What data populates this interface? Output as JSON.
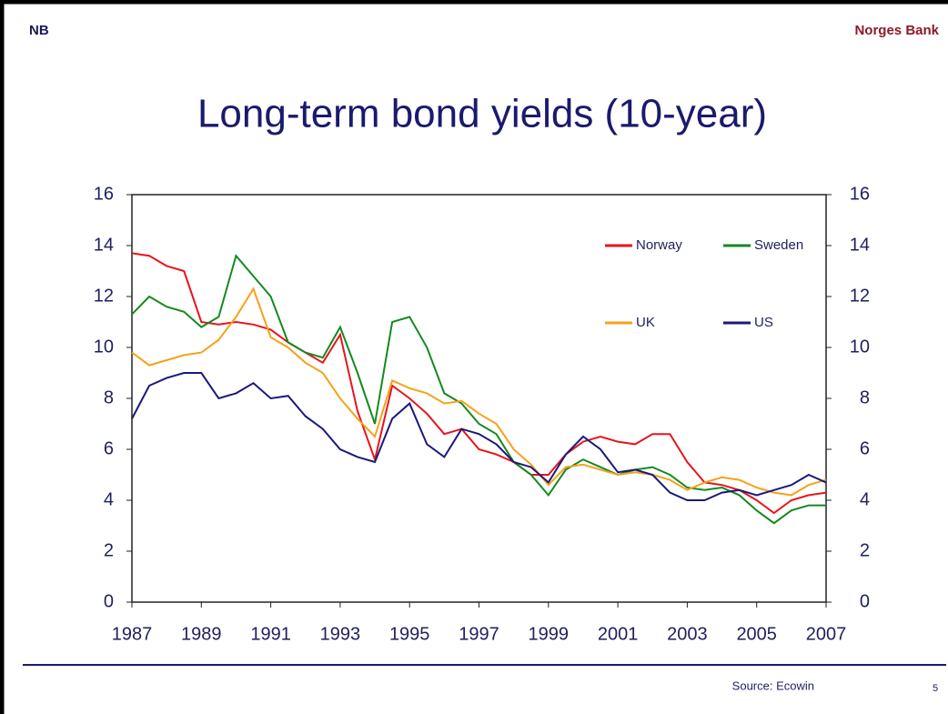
{
  "header": {
    "logo": "NB",
    "bank": "Norges Bank"
  },
  "footer": {
    "source": "Source: Ecowin",
    "page": "5"
  },
  "chart_data": {
    "type": "line",
    "title": "Long-term bond yields (10-year)",
    "x": [
      1987,
      1987.5,
      1988,
      1988.5,
      1989,
      1989.5,
      1990,
      1990.5,
      1991,
      1991.5,
      1992,
      1992.5,
      1993,
      1993.5,
      1994,
      1994.5,
      1995,
      1995.5,
      1996,
      1996.5,
      1997,
      1997.5,
      1998,
      1998.5,
      1999,
      1999.5,
      2000,
      2000.5,
      2001,
      2001.5,
      2002,
      2002.5,
      2003,
      2003.5,
      2004,
      2004.5,
      2005,
      2005.5,
      2006,
      2006.5,
      2007
    ],
    "series": [
      {
        "name": "Norway",
        "color": "#e8141c",
        "values": [
          13.7,
          13.6,
          13.2,
          13.0,
          11.0,
          10.9,
          11.0,
          10.9,
          10.7,
          10.2,
          9.8,
          9.4,
          10.5,
          7.5,
          5.6,
          8.5,
          8.0,
          7.4,
          6.6,
          6.8,
          6.0,
          5.8,
          5.5,
          5.0,
          5.0,
          5.8,
          6.3,
          6.5,
          6.3,
          6.2,
          6.6,
          6.6,
          5.5,
          4.7,
          4.6,
          4.4,
          4.0,
          3.5,
          4.0,
          4.2,
          4.3
        ]
      },
      {
        "name": "Sweden",
        "color": "#138a1e",
        "values": [
          11.3,
          12.0,
          11.6,
          11.4,
          10.8,
          11.2,
          13.6,
          12.8,
          12.0,
          10.2,
          9.8,
          9.6,
          10.8,
          9.0,
          7.0,
          11.0,
          11.2,
          10.0,
          8.2,
          7.8,
          7.0,
          6.6,
          5.5,
          5.0,
          4.2,
          5.2,
          5.6,
          5.3,
          5.0,
          5.2,
          5.3,
          5.0,
          4.5,
          4.4,
          4.5,
          4.2,
          3.6,
          3.1,
          3.6,
          3.8,
          3.8
        ]
      },
      {
        "name": "UK",
        "color": "#f5a21c",
        "values": [
          9.8,
          9.3,
          9.5,
          9.7,
          9.8,
          10.3,
          11.2,
          12.3,
          10.4,
          10.0,
          9.4,
          9.0,
          8.0,
          7.2,
          6.5,
          8.7,
          8.4,
          8.2,
          7.8,
          7.9,
          7.4,
          7.0,
          6.0,
          5.4,
          4.6,
          5.3,
          5.4,
          5.2,
          5.0,
          5.1,
          5.0,
          4.8,
          4.4,
          4.7,
          4.9,
          4.8,
          4.5,
          4.3,
          4.2,
          4.6,
          4.8
        ]
      },
      {
        "name": "US",
        "color": "#1a1a7a",
        "values": [
          7.2,
          8.5,
          8.8,
          9.0,
          9.0,
          8.0,
          8.2,
          8.6,
          8.0,
          8.1,
          7.3,
          6.8,
          6.0,
          5.7,
          5.5,
          7.2,
          7.8,
          6.2,
          5.7,
          6.8,
          6.6,
          6.2,
          5.5,
          5.3,
          4.7,
          5.8,
          6.5,
          6.0,
          5.1,
          5.2,
          5.0,
          4.3,
          4.0,
          4.0,
          4.3,
          4.4,
          4.2,
          4.4,
          4.6,
          5.0,
          4.7
        ]
      }
    ],
    "xlim": [
      1987,
      2007
    ],
    "xticks": [
      1987,
      1989,
      1991,
      1993,
      1995,
      1997,
      1999,
      2001,
      2003,
      2005,
      2007
    ],
    "ylim": [
      0,
      16
    ],
    "yticks": [
      0,
      2,
      4,
      6,
      8,
      10,
      12,
      14,
      16
    ],
    "y2lim": [
      0,
      16
    ],
    "y2ticks": [
      0,
      2,
      4,
      6,
      8,
      10,
      12,
      14,
      16
    ],
    "grid": false,
    "legend": "upper right"
  }
}
